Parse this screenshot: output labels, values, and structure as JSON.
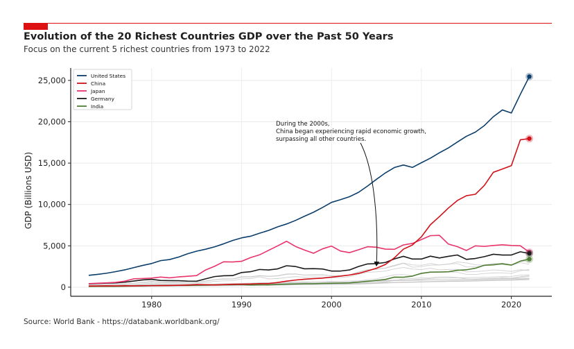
{
  "header": {
    "title": "Evolution of the 20 Richest Countries GDP over the Past 50 Years",
    "subtitle": "Focus on the current 5 richest countries from 1973 to 2022",
    "accent_color": "#dd1111"
  },
  "footer": {
    "source": "Source: World Bank - https://databank.worldbank.org/"
  },
  "chart_data": {
    "type": "line",
    "title": "Evolution of the 20 Richest Countries GDP over the Past 50 Years",
    "subtitle": "Focus on the current 5 richest countries from 1973 to 2022",
    "xlabel": "",
    "ylabel": "GDP (Billions USD)",
    "xlim": [
      1971,
      2024.5
    ],
    "ylim": [
      -1100,
      26500
    ],
    "xticks": [
      1980,
      1990,
      2000,
      2010,
      2020
    ],
    "yticks": [
      0,
      5000,
      10000,
      15000,
      20000,
      25000
    ],
    "ytick_labels": [
      "0",
      "5,000",
      "10,000",
      "15,000",
      "20,000",
      "25,000"
    ],
    "grid": true,
    "legend_position": "top-left",
    "x": [
      1973,
      1974,
      1975,
      1976,
      1977,
      1978,
      1979,
      1980,
      1981,
      1982,
      1983,
      1984,
      1985,
      1986,
      1987,
      1988,
      1989,
      1990,
      1991,
      1992,
      1993,
      1994,
      1995,
      1996,
      1997,
      1998,
      1999,
      2000,
      2001,
      2002,
      2003,
      2004,
      2005,
      2006,
      2007,
      2008,
      2009,
      2010,
      2011,
      2012,
      2013,
      2014,
      2015,
      2016,
      2017,
      2018,
      2019,
      2020,
      2021,
      2022
    ],
    "series": [
      {
        "name": "United States",
        "color": "#0b3d6b",
        "highlight": true,
        "values": [
          1430,
          1550,
          1690,
          1880,
          2090,
          2360,
          2630,
          2860,
          3210,
          3340,
          3640,
          4040,
          4350,
          4590,
          4880,
          5240,
          5640,
          5960,
          6160,
          6520,
          6860,
          7290,
          7640,
          8070,
          8580,
          9060,
          9630,
          10250,
          10580,
          10940,
          11460,
          12220,
          13040,
          13820,
          14470,
          14770,
          14480,
          15050,
          15600,
          16250,
          16840,
          17550,
          18240,
          18750,
          19540,
          20610,
          21430,
          21060,
          23320,
          25460
        ]
      },
      {
        "name": "China",
        "color": "#d10f17",
        "highlight": true,
        "values": [
          140,
          145,
          165,
          155,
          175,
          150,
          180,
          190,
          195,
          205,
          230,
          260,
          310,
          300,
          270,
          310,
          350,
          360,
          380,
          430,
          440,
          560,
          730,
          860,
          960,
          1030,
          1090,
          1210,
          1340,
          1470,
          1660,
          1960,
          2290,
          2750,
          3550,
          4600,
          5100,
          6090,
          7550,
          8530,
          9570,
          10480,
          11060,
          11230,
          12310,
          13890,
          14280,
          14690,
          17820,
          17960
        ]
      },
      {
        "name": "Japan",
        "color": "#e8336b",
        "highlight": true,
        "values": [
          430,
          480,
          520,
          580,
          720,
          1010,
          1050,
          1100,
          1220,
          1130,
          1240,
          1320,
          1400,
          2080,
          2530,
          3070,
          3050,
          3130,
          3580,
          3910,
          4450,
          4990,
          5550,
          4920,
          4490,
          4100,
          4630,
          4970,
          4370,
          4180,
          4520,
          4890,
          4830,
          4600,
          4580,
          5110,
          5290,
          5760,
          6230,
          6270,
          5210,
          4900,
          4440,
          5000,
          4930,
          5040,
          5120,
          5040,
          5010,
          4230
        ]
      },
      {
        "name": "Germany",
        "color": "#1a1a1a",
        "highlight": true,
        "values": [
          400,
          450,
          490,
          520,
          600,
          740,
          880,
          950,
          810,
          790,
          780,
          730,
          720,
          1010,
          1280,
          1380,
          1400,
          1770,
          1870,
          2140,
          2080,
          2210,
          2590,
          2500,
          2220,
          2240,
          2200,
          1950,
          1950,
          2080,
          2500,
          2810,
          2850,
          2990,
          3420,
          3730,
          3400,
          3400,
          3750,
          3530,
          3730,
          3890,
          3360,
          3470,
          3690,
          3980,
          3890,
          3890,
          4280,
          4080
        ]
      },
      {
        "name": "India",
        "color": "#4f7d34",
        "highlight": true,
        "values": [
          85,
          100,
          100,
          100,
          120,
          140,
          150,
          185,
          195,
          205,
          220,
          215,
          235,
          250,
          280,
          290,
          295,
          320,
          270,
          290,
          280,
          330,
          360,
          390,
          420,
          420,
          460,
          470,
          490,
          510,
          610,
          710,
          820,
          940,
          1210,
          1200,
          1340,
          1680,
          1820,
          1830,
          1860,
          2040,
          2100,
          2290,
          2650,
          2700,
          2840,
          2670,
          3150,
          3390
        ]
      }
    ],
    "background_series": [
      {
        "values": [
          230,
          270,
          330,
          370,
          400,
          480,
          550,
          620,
          560,
          540,
          520,
          510,
          530,
          720,
          890,
          960,
          970,
          1210,
          1230,
          1370,
          1300,
          1350,
          1550,
          1580,
          1460,
          1480,
          1490,
          1370,
          1380,
          1500,
          1810,
          2060,
          2160,
          2310,
          2550,
          2890,
          2410,
          2490,
          2660,
          2690,
          2780,
          3060,
          2930,
          2700,
          2680,
          2870,
          2860,
          2700,
          3140,
          3090
        ]
      },
      {
        "values": [
          260,
          280,
          340,
          360,
          380,
          470,
          600,
          700,
          630,
          600,
          560,
          540,
          550,
          770,
          920,
          1020,
          1000,
          1270,
          1270,
          1400,
          1330,
          1390,
          1600,
          1610,
          1460,
          1510,
          1490,
          1360,
          1380,
          1490,
          1840,
          2110,
          2190,
          2320,
          2660,
          2920,
          2690,
          2640,
          2860,
          2680,
          2810,
          2860,
          2440,
          2470,
          2590,
          2790,
          2730,
          2640,
          2960,
          2780
        ]
      },
      {
        "values": [
          180,
          200,
          230,
          250,
          280,
          320,
          400,
          480,
          420,
          410,
          400,
          390,
          400,
          550,
          700,
          760,
          780,
          1000,
          1050,
          1250,
          1000,
          1050,
          1170,
          1280,
          1200,
          1240,
          1240,
          1140,
          1160,
          1270,
          1570,
          1800,
          1850,
          1950,
          2210,
          2390,
          2190,
          2130,
          2290,
          2090,
          2140,
          2160,
          1840,
          1880,
          1960,
          2090,
          2010,
          1900,
          2110,
          2010
        ]
      },
      {
        "values": [
          120,
          150,
          180,
          200,
          230,
          260,
          280,
          290,
          270,
          260,
          260,
          250,
          250,
          280,
          300,
          320,
          380,
          430,
          470,
          520,
          460,
          480,
          520,
          560,
          560,
          530,
          520,
          480,
          440,
          470,
          480,
          500,
          560,
          640,
          800,
          1000,
          1050,
          1130,
          1140,
          1240,
          1240,
          1170,
          990,
          930,
          1000,
          990,
          1150,
          1100,
          1250,
          1400
        ]
      },
      {
        "values": [
          90,
          95,
          110,
          130,
          150,
          170,
          180,
          190,
          200,
          210,
          190,
          175,
          170,
          180,
          220,
          260,
          300,
          320,
          340,
          360,
          380,
          390,
          420,
          450,
          470,
          480,
          540,
          600,
          590,
          600,
          760,
          890,
          1000,
          1250,
          1500,
          1530,
          1370,
          1600,
          1790,
          1850,
          1840,
          1800,
          1560,
          1530,
          1650,
          1720,
          1740,
          1650,
          1990,
          2140
        ]
      },
      {
        "values": [
          95,
          100,
          110,
          120,
          130,
          150,
          165,
          180,
          200,
          220,
          220,
          230,
          240,
          260,
          280,
          290,
          300,
          320,
          340,
          360,
          390,
          410,
          440,
          470,
          500,
          520,
          540,
          560,
          590,
          620,
          650,
          690,
          730,
          780,
          820,
          880,
          900,
          980,
          1050,
          1110,
          1130,
          1140,
          1150,
          1170,
          1200,
          1230,
          1280,
          1300,
          1450,
          1500
        ]
      },
      {
        "values": [
          80,
          95,
          100,
          110,
          130,
          140,
          150,
          160,
          170,
          175,
          180,
          190,
          200,
          210,
          220,
          230,
          240,
          250,
          260,
          270,
          280,
          300,
          320,
          340,
          350,
          360,
          380,
          400,
          410,
          420,
          440,
          460,
          500,
          530,
          570,
          600,
          610,
          640,
          680,
          720,
          730,
          740,
          740,
          760,
          800,
          850,
          880,
          860,
          950,
          1000
        ]
      },
      {
        "values": [
          60,
          70,
          80,
          90,
          100,
          110,
          120,
          130,
          140,
          140,
          150,
          150,
          160,
          170,
          180,
          190,
          200,
          210,
          220,
          230,
          240,
          260,
          280,
          300,
          320,
          300,
          310,
          330,
          320,
          340,
          370,
          410,
          460,
          500,
          540,
          560,
          580,
          620,
          650,
          670,
          690,
          700,
          720,
          740,
          770,
          820,
          850,
          880,
          950,
          1040
        ]
      },
      {
        "values": [
          40,
          45,
          50,
          55,
          60,
          70,
          80,
          90,
          100,
          110,
          120,
          130,
          140,
          150,
          160,
          170,
          180,
          190,
          200,
          210,
          220,
          240,
          260,
          280,
          290,
          300,
          310,
          320,
          330,
          350,
          380,
          420,
          460,
          500,
          550,
          590,
          620,
          660,
          700,
          730,
          760,
          780,
          800,
          820,
          840,
          870,
          900,
          910,
          960,
          1010
        ]
      },
      {
        "values": [
          70,
          80,
          85,
          90,
          100,
          110,
          120,
          140,
          150,
          160,
          170,
          180,
          190,
          200,
          230,
          250,
          270,
          300,
          330,
          360,
          380,
          410,
          440,
          460,
          470,
          480,
          500,
          520,
          540,
          560,
          600,
          650,
          700,
          740,
          780,
          800,
          810,
          840,
          880,
          900,
          920,
          940,
          960,
          990,
          1030,
          1080,
          1100,
          1050,
          1190,
          1280
        ]
      },
      {
        "values": [
          150,
          170,
          190,
          210,
          240,
          270,
          300,
          330,
          310,
          300,
          290,
          280,
          290,
          330,
          380,
          420,
          440,
          470,
          490,
          520,
          540,
          570,
          600,
          630,
          640,
          660,
          680,
          700,
          720,
          740,
          760,
          780,
          800,
          820,
          850,
          870,
          880,
          890,
          900,
          910,
          920,
          930,
          940,
          950,
          960,
          980,
          1000,
          1010,
          1050,
          1080
        ]
      },
      {
        "values": [
          100,
          110,
          120,
          130,
          140,
          150,
          160,
          170,
          180,
          190,
          200,
          210,
          220,
          230,
          240,
          250,
          260,
          280,
          300,
          320,
          340,
          360,
          380,
          400,
          410,
          420,
          430,
          440,
          460,
          480,
          500,
          520,
          540,
          560,
          580,
          600,
          620,
          640,
          660,
          680,
          700,
          720,
          740,
          760,
          780,
          800,
          820,
          840,
          870,
          900
        ]
      }
    ],
    "end_markers": [
      "United States",
      "China",
      "Japan",
      "Germany",
      "India"
    ],
    "annotation": {
      "lines": [
        "During the 2000s,",
        "China began experiencing rapid economic growth,",
        "surpassing all other countries."
      ],
      "target": {
        "x": 2005,
        "y": 2250
      }
    }
  }
}
